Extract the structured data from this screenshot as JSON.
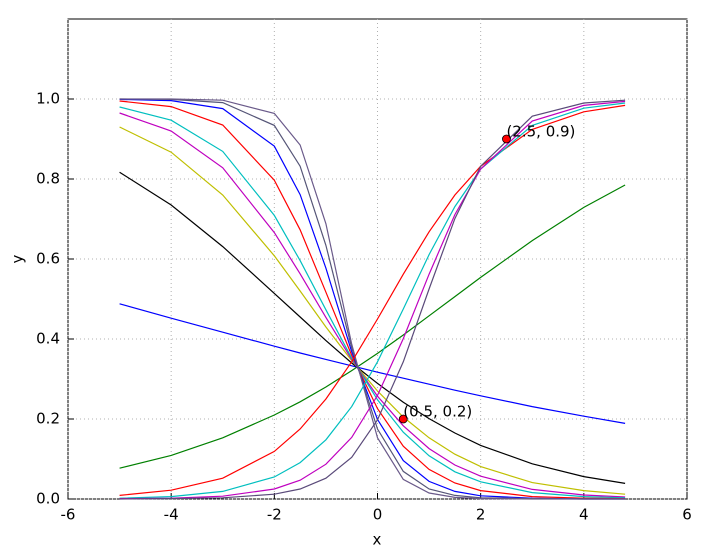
{
  "chart_data": {
    "type": "line",
    "xlabel": "x",
    "ylabel": "y",
    "xlim": [
      -6,
      6
    ],
    "ylim": [
      0,
      1.2
    ],
    "xticks": [
      -6,
      -4,
      -2,
      0,
      2,
      4,
      6
    ],
    "yticks": [
      {
        "value": 0,
        "label": "0.0"
      },
      0.2,
      0.4,
      0.6,
      0.8,
      {
        "value": 1,
        "label": "1.0"
      }
    ],
    "grid": true,
    "x": [
      -5,
      -4,
      -3,
      -2,
      -1.5,
      -1,
      -0.5,
      0,
      0.5,
      1,
      1.5,
      2,
      3,
      4,
      4.8
    ],
    "series": [
      {
        "color": "#0000ff",
        "values": [
          0.488,
          0.452,
          0.417,
          0.382,
          0.365,
          0.349,
          0.333,
          0.317,
          0.302,
          0.287,
          0.272,
          0.258,
          0.231,
          0.207,
          0.189
        ]
      },
      {
        "color": "#008000",
        "values": [
          0.077,
          0.109,
          0.153,
          0.21,
          0.243,
          0.28,
          0.321,
          0.364,
          0.41,
          0.458,
          0.506,
          0.554,
          0.646,
          0.729,
          0.785
        ]
      },
      {
        "color": "#000000",
        "values": [
          0.817,
          0.735,
          0.631,
          0.514,
          0.455,
          0.396,
          0.34,
          0.289,
          0.242,
          0.201,
          0.165,
          0.134,
          0.088,
          0.056,
          0.039
        ]
      },
      {
        "color": "#bfbf00",
        "values": [
          0.93,
          0.867,
          0.76,
          0.608,
          0.52,
          0.43,
          0.346,
          0.27,
          0.205,
          0.153,
          0.112,
          0.081,
          0.041,
          0.021,
          0.012
        ]
      },
      {
        "color": "#bf00bf",
        "values": [
          0.965,
          0.92,
          0.828,
          0.666,
          0.563,
          0.454,
          0.349,
          0.257,
          0.183,
          0.126,
          0.085,
          0.057,
          0.024,
          0.01,
          0.005
        ]
      },
      {
        "color": "#00bfbf",
        "values": [
          0.98,
          0.947,
          0.869,
          0.709,
          0.596,
          0.473,
          0.352,
          0.248,
          0.167,
          0.108,
          0.068,
          0.043,
          0.016,
          0.006,
          0.003
        ]
      },
      {
        "color": "#ff0000",
        "values": [
          0.995,
          0.981,
          0.935,
          0.797,
          0.673,
          0.517,
          0.359,
          0.226,
          0.132,
          0.074,
          0.04,
          0.021,
          0.006,
          0.002,
          0.001
        ]
      },
      {
        "color": "#0000ff",
        "values": [
          0.999,
          0.996,
          0.976,
          0.882,
          0.761,
          0.577,
          0.368,
          0.199,
          0.096,
          0.044,
          0.019,
          0.008,
          0.002,
          0,
          0
        ]
      },
      {
        "color": "#555577",
        "values": [
          1,
          0.999,
          0.991,
          0.934,
          0.832,
          0.634,
          0.378,
          0.175,
          0.069,
          0.025,
          0.009,
          0.003,
          0.001,
          0,
          0
        ]
      },
      {
        "color": "#6a5a8a",
        "values": [
          1,
          1,
          0.997,
          0.964,
          0.885,
          0.688,
          0.387,
          0.153,
          0.049,
          0.015,
          0.004,
          0.001,
          0,
          0,
          0
        ]
      },
      {
        "color": "#ff0000",
        "values": [
          0.009,
          0.022,
          0.052,
          0.119,
          0.175,
          0.25,
          0.343,
          0.45,
          0.562,
          0.668,
          0.76,
          0.832,
          0.924,
          0.968,
          0.984
        ]
      },
      {
        "color": "#00bfbf",
        "values": [
          0.002,
          0.006,
          0.019,
          0.055,
          0.091,
          0.148,
          0.231,
          0.343,
          0.475,
          0.611,
          0.731,
          0.825,
          0.934,
          0.977,
          0.99
        ]
      },
      {
        "color": "#bf00bf",
        "values": [
          0.001,
          0.002,
          0.007,
          0.025,
          0.047,
          0.087,
          0.154,
          0.259,
          0.401,
          0.562,
          0.711,
          0.825,
          0.945,
          0.984,
          0.994
        ]
      },
      {
        "color": "#5a4a7a",
        "values": [
          0,
          0.001,
          0.003,
          0.012,
          0.025,
          0.052,
          0.104,
          0.198,
          0.343,
          0.525,
          0.701,
          0.832,
          0.957,
          0.99,
          0.997
        ]
      }
    ],
    "points": {
      "color": "#ff0000",
      "x": [
        0.5,
        2.5
      ],
      "y": [
        0.2,
        0.9
      ],
      "labels": [
        "(0.5, 0.2)",
        "(2.5, 0.9)"
      ]
    }
  }
}
